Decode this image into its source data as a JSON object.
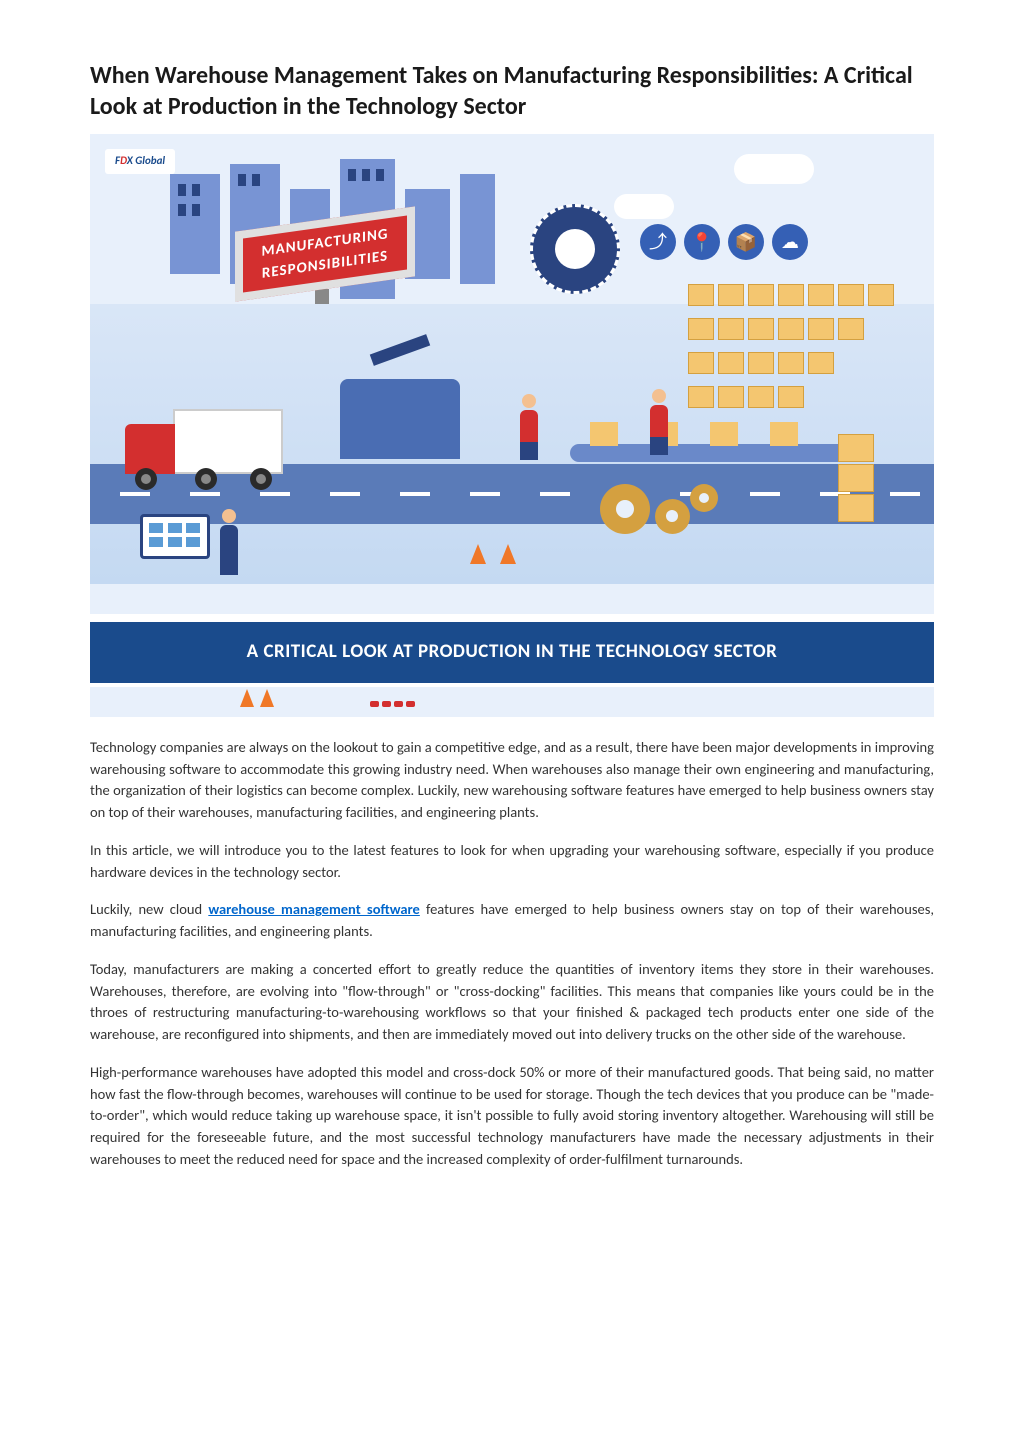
{
  "article": {
    "title": "When Warehouse Management Takes on Manufacturing Responsibilities: A Critical Look at Production in the Technology Sector"
  },
  "hero": {
    "logo_prefix": "F",
    "logo_mid": "D",
    "logo_suffix": "X Global",
    "sign_line1": "MANUFACTURING",
    "sign_line2": "RESPONSIBILITIES",
    "banner_text": "A CRITICAL LOOK AT PRODUCTION IN THE TECHNOLOGY SECTOR",
    "colors": {
      "sky": "#e8f0fb",
      "banner_bg": "#1a4b8c",
      "banner_text": "#ffffff",
      "sign_bg": "#d32f2f",
      "building": "#7894d4",
      "box": "#f4c670",
      "road": "#5a7bb8",
      "gear": "#d4a040",
      "cone": "#f07828"
    },
    "shelf_rows": 4,
    "shelf_cols": 7,
    "road_dashes": 12
  },
  "body": {
    "p1": "Technology companies are always on the lookout to gain a competitive edge, and as a result, there have been major developments in improving warehousing software to accommodate this growing industry need. When warehouses also manage their own engineering and manufacturing, the organization of their logistics can become complex. Luckily, new warehousing software features have emerged to help business owners stay on top of their warehouses, manufacturing facilities, and engineering plants.",
    "p2": "In this article, we will introduce you to the latest features to look for when upgrading your warehousing software, especially if you produce hardware devices in the technology sector.",
    "p3_before": "Luckily, new cloud ",
    "p3_link": "warehouse management software",
    "p3_after": " features have emerged to help business owners stay on top of their warehouses, manufacturing facilities, and engineering plants.",
    "p4": "Today, manufacturers are making a concerted effort to greatly reduce the quantities of inventory items they store in their warehouses. Warehouses, therefore, are evolving into \"flow-through\" or \"cross-docking\" facilities. This means that companies like yours could be in the throes of restructuring manufacturing-to-warehousing workflows so that your finished & packaged tech products enter one side of the warehouse, are reconfigured into shipments, and then are immediately moved out into delivery trucks on the other side of the warehouse.",
    "p5": "High-performance warehouses have adopted this model and cross-dock 50% or more of their manufactured goods. That being said, no matter how fast the flow-through becomes, warehouses will continue to be used for storage. Though the tech devices that you produce can be \"made-to-order\", which would reduce taking up warehouse space, it isn't possible to fully avoid storing inventory altogether. Warehousing will still be required for the foreseeable future, and the most successful technology manufacturers have made the necessary adjustments in their warehouses to meet the reduced need for space and the increased complexity of order-fulfilment turnarounds."
  }
}
